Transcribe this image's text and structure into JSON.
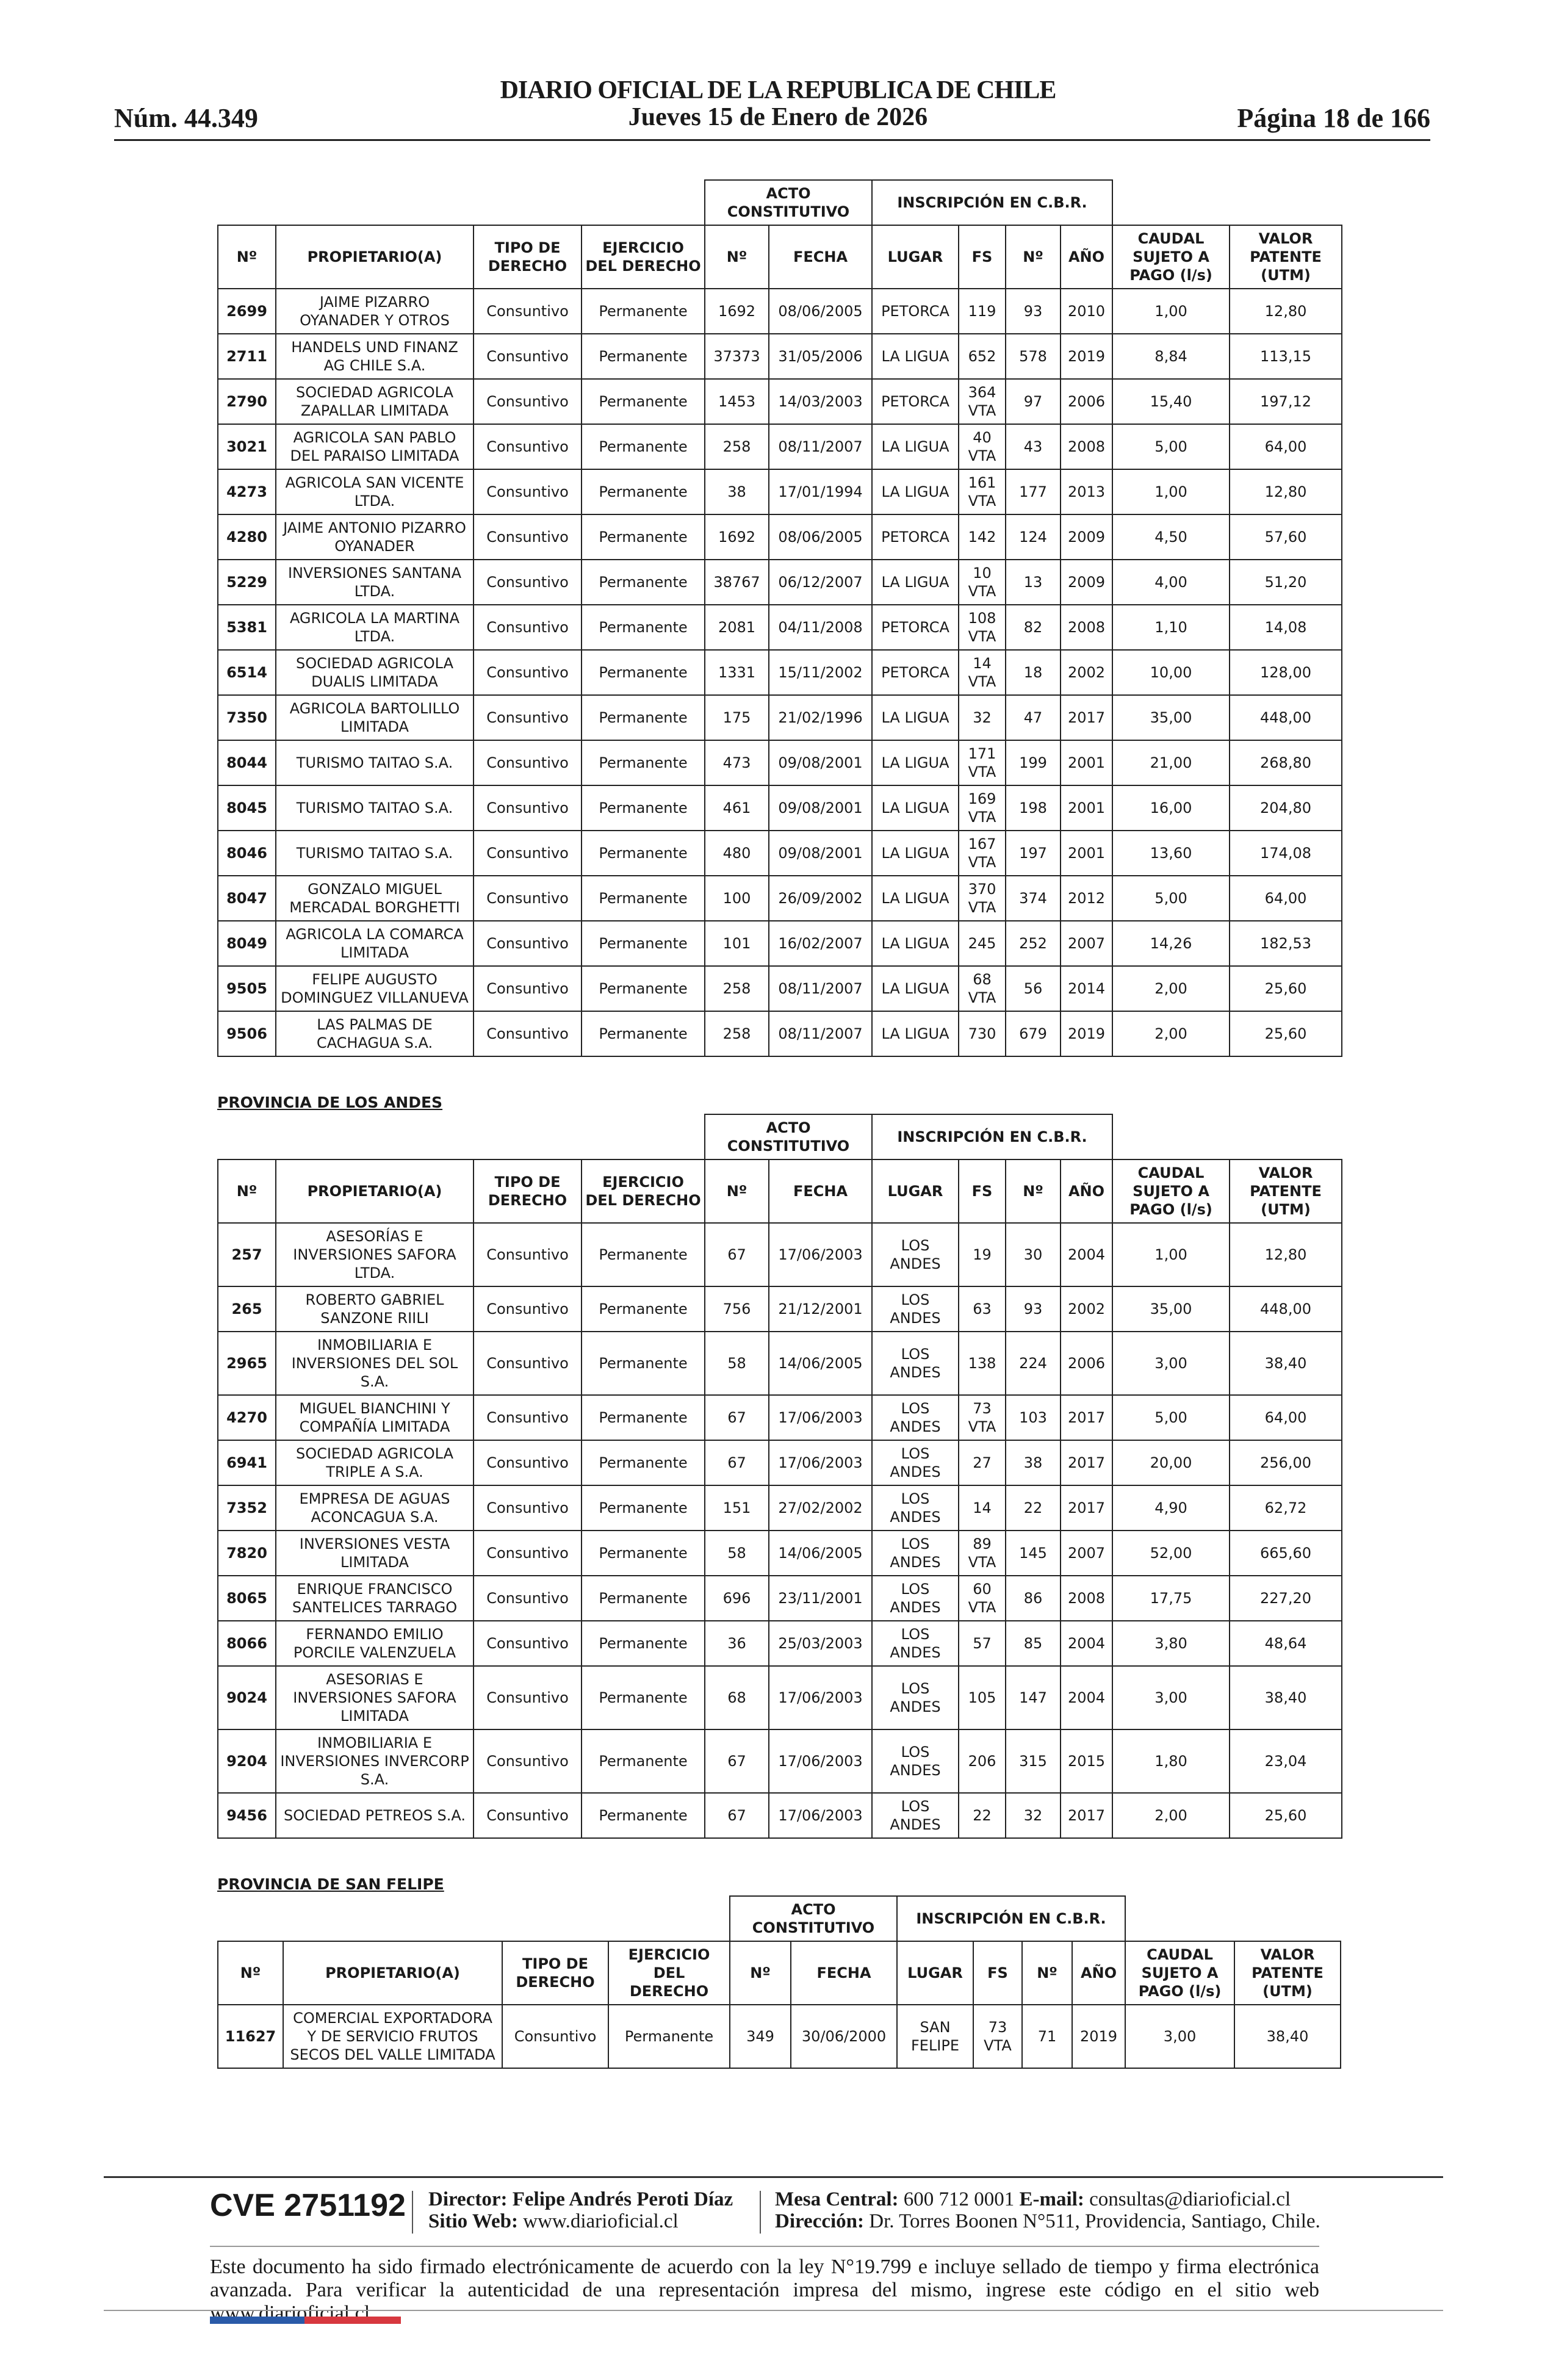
{
  "header": {
    "number": "Núm. 44.349",
    "title": "DIARIO OFICIAL DE LA REPUBLICA DE CHILE",
    "date": "Jueves 15 de Enero de 2026",
    "page": "Página 18 de 166"
  },
  "tables": [
    {
      "group_headers": [
        "ACTO CONSTITUTIVO",
        "INSCRIPCIÓN EN C.B.R."
      ],
      "headers": [
        "Nº",
        "PROPIETARIO(A)",
        "TIPO DE DERECHO",
        "EJERCICIO DEL DERECHO",
        "Nº",
        "FECHA",
        "LUGAR",
        "FS",
        "Nº",
        "AÑO",
        "CAUDAL SUJETO A PAGO (l/s)",
        "VALOR PATENTE (UTM)"
      ],
      "rows": [
        [
          "2699",
          "JAIME PIZARRO OYANADER Y OTROS",
          "Consuntivo",
          "Permanente",
          "1692",
          "08/06/2005",
          "PETORCA",
          "119",
          "93",
          "2010",
          "1,00",
          "12,80"
        ],
        [
          "2711",
          "HANDELS UND FINANZ AG CHILE S.A.",
          "Consuntivo",
          "Permanente",
          "37373",
          "31/05/2006",
          "LA LIGUA",
          "652",
          "578",
          "2019",
          "8,84",
          "113,15"
        ],
        [
          "2790",
          "SOCIEDAD AGRICOLA ZAPALLAR LIMITADA",
          "Consuntivo",
          "Permanente",
          "1453",
          "14/03/2003",
          "PETORCA",
          "364 VTA",
          "97",
          "2006",
          "15,40",
          "197,12"
        ],
        [
          "3021",
          "AGRICOLA SAN PABLO DEL PARAISO LIMITADA",
          "Consuntivo",
          "Permanente",
          "258",
          "08/11/2007",
          "LA LIGUA",
          "40 VTA",
          "43",
          "2008",
          "5,00",
          "64,00"
        ],
        [
          "4273",
          "AGRICOLA SAN VICENTE LTDA.",
          "Consuntivo",
          "Permanente",
          "38",
          "17/01/1994",
          "LA LIGUA",
          "161 VTA",
          "177",
          "2013",
          "1,00",
          "12,80"
        ],
        [
          "4280",
          "JAIME ANTONIO PIZARRO OYANADER",
          "Consuntivo",
          "Permanente",
          "1692",
          "08/06/2005",
          "PETORCA",
          "142",
          "124",
          "2009",
          "4,50",
          "57,60"
        ],
        [
          "5229",
          "INVERSIONES SANTANA LTDA.",
          "Consuntivo",
          "Permanente",
          "38767",
          "06/12/2007",
          "LA LIGUA",
          "10 VTA",
          "13",
          "2009",
          "4,00",
          "51,20"
        ],
        [
          "5381",
          "AGRICOLA LA MARTINA LTDA.",
          "Consuntivo",
          "Permanente",
          "2081",
          "04/11/2008",
          "PETORCA",
          "108 VTA",
          "82",
          "2008",
          "1,10",
          "14,08"
        ],
        [
          "6514",
          "SOCIEDAD AGRICOLA DUALIS LIMITADA",
          "Consuntivo",
          "Permanente",
          "1331",
          "15/11/2002",
          "PETORCA",
          "14 VTA",
          "18",
          "2002",
          "10,00",
          "128,00"
        ],
        [
          "7350",
          "AGRICOLA BARTOLILLO LIMITADA",
          "Consuntivo",
          "Permanente",
          "175",
          "21/02/1996",
          "LA LIGUA",
          "32",
          "47",
          "2017",
          "35,00",
          "448,00"
        ],
        [
          "8044",
          "TURISMO TAITAO S.A.",
          "Consuntivo",
          "Permanente",
          "473",
          "09/08/2001",
          "LA LIGUA",
          "171 VTA",
          "199",
          "2001",
          "21,00",
          "268,80"
        ],
        [
          "8045",
          "TURISMO TAITAO S.A.",
          "Consuntivo",
          "Permanente",
          "461",
          "09/08/2001",
          "LA LIGUA",
          "169 VTA",
          "198",
          "2001",
          "16,00",
          "204,80"
        ],
        [
          "8046",
          "TURISMO TAITAO S.A.",
          "Consuntivo",
          "Permanente",
          "480",
          "09/08/2001",
          "LA LIGUA",
          "167 VTA",
          "197",
          "2001",
          "13,60",
          "174,08"
        ],
        [
          "8047",
          "GONZALO MIGUEL MERCADAL BORGHETTI",
          "Consuntivo",
          "Permanente",
          "100",
          "26/09/2002",
          "LA LIGUA",
          "370 VTA",
          "374",
          "2012",
          "5,00",
          "64,00"
        ],
        [
          "8049",
          "AGRICOLA LA COMARCA LIMITADA",
          "Consuntivo",
          "Permanente",
          "101",
          "16/02/2007",
          "LA LIGUA",
          "245",
          "252",
          "2007",
          "14,26",
          "182,53"
        ],
        [
          "9505",
          "FELIPE AUGUSTO DOMINGUEZ VILLANUEVA",
          "Consuntivo",
          "Permanente",
          "258",
          "08/11/2007",
          "LA LIGUA",
          "68 VTA",
          "56",
          "2014",
          "2,00",
          "25,60"
        ],
        [
          "9506",
          "LAS PALMAS DE CACHAGUA S.A.",
          "Consuntivo",
          "Permanente",
          "258",
          "08/11/2007",
          "LA LIGUA",
          "730",
          "679",
          "2019",
          "2,00",
          "25,60"
        ]
      ]
    },
    {
      "section": "PROVINCIA DE LOS ANDES",
      "group_headers": [
        "ACTO CONSTITUTIVO",
        "INSCRIPCIÓN EN C.B.R."
      ],
      "headers": [
        "Nº",
        "PROPIETARIO(A)",
        "TIPO DE DERECHO",
        "EJERCICIO DEL DERECHO",
        "Nº",
        "FECHA",
        "LUGAR",
        "FS",
        "Nº",
        "AÑO",
        "CAUDAL SUJETO A PAGO (l/s)",
        "VALOR PATENTE (UTM)"
      ],
      "rows": [
        [
          "257",
          "ASESORÍAS E INVERSIONES SAFORA LTDA.",
          "Consuntivo",
          "Permanente",
          "67",
          "17/06/2003",
          "LOS ANDES",
          "19",
          "30",
          "2004",
          "1,00",
          "12,80"
        ],
        [
          "265",
          "ROBERTO GABRIEL SANZONE RIILI",
          "Consuntivo",
          "Permanente",
          "756",
          "21/12/2001",
          "LOS ANDES",
          "63",
          "93",
          "2002",
          "35,00",
          "448,00"
        ],
        [
          "2965",
          "INMOBILIARIA E INVERSIONES DEL SOL S.A.",
          "Consuntivo",
          "Permanente",
          "58",
          "14/06/2005",
          "LOS ANDES",
          "138",
          "224",
          "2006",
          "3,00",
          "38,40"
        ],
        [
          "4270",
          "MIGUEL BIANCHINI Y COMPAÑÍA LIMITADA",
          "Consuntivo",
          "Permanente",
          "67",
          "17/06/2003",
          "LOS ANDES",
          "73 VTA",
          "103",
          "2017",
          "5,00",
          "64,00"
        ],
        [
          "6941",
          "SOCIEDAD AGRICOLA TRIPLE A S.A.",
          "Consuntivo",
          "Permanente",
          "67",
          "17/06/2003",
          "LOS ANDES",
          "27",
          "38",
          "2017",
          "20,00",
          "256,00"
        ],
        [
          "7352",
          "EMPRESA DE AGUAS ACONCAGUA S.A.",
          "Consuntivo",
          "Permanente",
          "151",
          "27/02/2002",
          "LOS ANDES",
          "14",
          "22",
          "2017",
          "4,90",
          "62,72"
        ],
        [
          "7820",
          "INVERSIONES VESTA LIMITADA",
          "Consuntivo",
          "Permanente",
          "58",
          "14/06/2005",
          "LOS ANDES",
          "89 VTA",
          "145",
          "2007",
          "52,00",
          "665,60"
        ],
        [
          "8065",
          "ENRIQUE FRANCISCO SANTELICES TARRAGO",
          "Consuntivo",
          "Permanente",
          "696",
          "23/11/2001",
          "LOS ANDES",
          "60 VTA",
          "86",
          "2008",
          "17,75",
          "227,20"
        ],
        [
          "8066",
          "FERNANDO EMILIO PORCILE VALENZUELA",
          "Consuntivo",
          "Permanente",
          "36",
          "25/03/2003",
          "LOS ANDES",
          "57",
          "85",
          "2004",
          "3,80",
          "48,64"
        ],
        [
          "9024",
          "ASESORIAS E INVERSIONES SAFORA LIMITADA",
          "Consuntivo",
          "Permanente",
          "68",
          "17/06/2003",
          "LOS ANDES",
          "105",
          "147",
          "2004",
          "3,00",
          "38,40"
        ],
        [
          "9204",
          "INMOBILIARIA E INVERSIONES INVERCORP S.A.",
          "Consuntivo",
          "Permanente",
          "67",
          "17/06/2003",
          "LOS ANDES",
          "206",
          "315",
          "2015",
          "1,80",
          "23,04"
        ],
        [
          "9456",
          "SOCIEDAD PETREOS S.A.",
          "Consuntivo",
          "Permanente",
          "67",
          "17/06/2003",
          "LOS ANDES",
          "22",
          "32",
          "2017",
          "2,00",
          "25,60"
        ]
      ]
    },
    {
      "section": "PROVINCIA DE SAN FELIPE",
      "group_headers": [
        "ACTO CONSTITUTIVO",
        "INSCRIPCIÓN EN C.B.R."
      ],
      "headers": [
        "Nº",
        "PROPIETARIO(A)",
        "TIPO DE DERECHO",
        "EJERCICIO DEL DERECHO",
        "Nº",
        "FECHA",
        "LUGAR",
        "FS",
        "Nº",
        "AÑO",
        "CAUDAL SUJETO A PAGO (l/s)",
        "VALOR PATENTE (UTM)"
      ],
      "rows": [
        [
          "11627",
          "COMERCIAL EXPORTADORA Y DE SERVICIO FRUTOS SECOS DEL VALLE LIMITADA",
          "Consuntivo",
          "Permanente",
          "349",
          "30/06/2000",
          "SAN FELIPE",
          "73 VTA",
          "71",
          "2019",
          "3,00",
          "38,40"
        ]
      ]
    }
  ],
  "footer": {
    "cve": "CVE 2751192",
    "director_label": "Director:",
    "director": "Felipe Andrés Peroti Díaz",
    "web_label": "Sitio Web:",
    "web": "www.diarioficial.cl",
    "phone_label": "Mesa Central:",
    "phone": "600 712 0001",
    "email_label": "E-mail:",
    "email": "consultas@diarioficial.cl",
    "address_label": "Dirección:",
    "address": "Dr. Torres Boonen N°511, Providencia, Santiago, Chile.",
    "notice": "Este documento ha sido firmado electrónicamente de acuerdo con la ley N°19.799 e incluye sellado de tiempo y firma electrónica avanzada. Para verificar la autenticidad de una representación impresa del mismo, ingrese este código en el sitio web www.diarioficial.cl"
  }
}
